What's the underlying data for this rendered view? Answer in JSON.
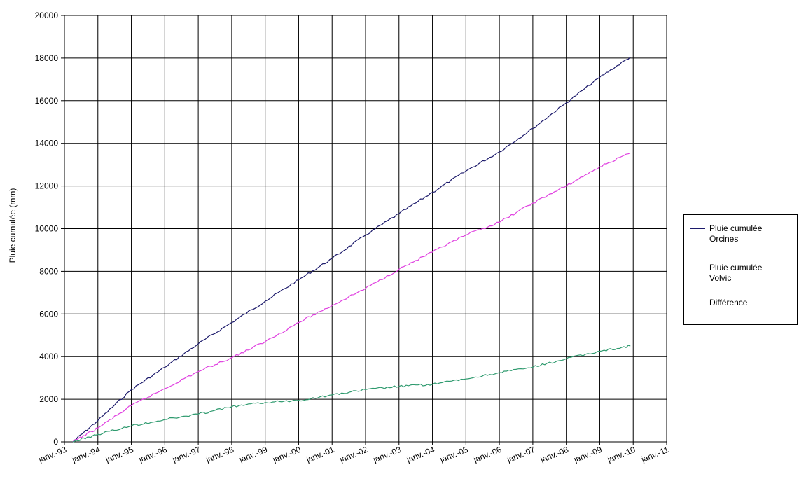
{
  "chart_data": {
    "type": "line",
    "ylabel": "Pluie cumulée (mm)",
    "ylim": [
      0,
      20000
    ],
    "yticks": [
      0,
      2000,
      4000,
      6000,
      8000,
      10000,
      12000,
      14000,
      16000,
      18000,
      20000
    ],
    "x_tick_labels": [
      "janv.-93",
      "janv.-94",
      "janv.-95",
      "janv.-96",
      "janv.-97",
      "janv.-98",
      "janv.-99",
      "janv.-00",
      "janv.-01",
      "janv.-02",
      "janv.-03",
      "janv.-04",
      "janv.-05",
      "janv.-06",
      "janv.-07",
      "janv.-08",
      "janv.-09",
      "janv.-10",
      "janv.-11"
    ],
    "xlim": [
      "1993-01",
      "2011-01"
    ],
    "grid": true,
    "legend_position": "right",
    "x": [
      "1993-04",
      "1994-01",
      "1995-01",
      "1996-01",
      "1997-01",
      "1998-01",
      "1999-01",
      "2000-01",
      "2001-01",
      "2002-01",
      "2003-01",
      "2004-01",
      "2005-01",
      "2006-01",
      "2007-01",
      "2008-01",
      "2009-01",
      "2009-12"
    ],
    "series": [
      {
        "name": "Pluie cumulée Orcines",
        "color": "#1c1a6b",
        "values": [
          0,
          1000,
          2450,
          3500,
          4600,
          5600,
          6600,
          7600,
          8600,
          9700,
          10700,
          11700,
          12700,
          13600,
          14700,
          15900,
          17100,
          18050
        ]
      },
      {
        "name": "Pluie cumulée Volvic",
        "color": "#e040e0",
        "values": [
          0,
          650,
          1700,
          2500,
          3300,
          3950,
          4700,
          5600,
          6400,
          7200,
          8100,
          8900,
          9700,
          10300,
          11200,
          12000,
          12900,
          13550
        ]
      },
      {
        "name": "Différence",
        "color": "#2e9a6e",
        "values": [
          0,
          350,
          750,
          1050,
          1300,
          1650,
          1850,
          1950,
          2200,
          2450,
          2600,
          2700,
          2950,
          3250,
          3500,
          3900,
          4250,
          4500
        ]
      }
    ]
  },
  "legend": {
    "items": [
      {
        "label": "Pluie cumulée Orcines",
        "color": "#1c1a6b"
      },
      {
        "label": "Pluie cumulée Volvic",
        "color": "#e040e0"
      },
      {
        "label": "Différence",
        "color": "#2e9a6e"
      }
    ]
  }
}
